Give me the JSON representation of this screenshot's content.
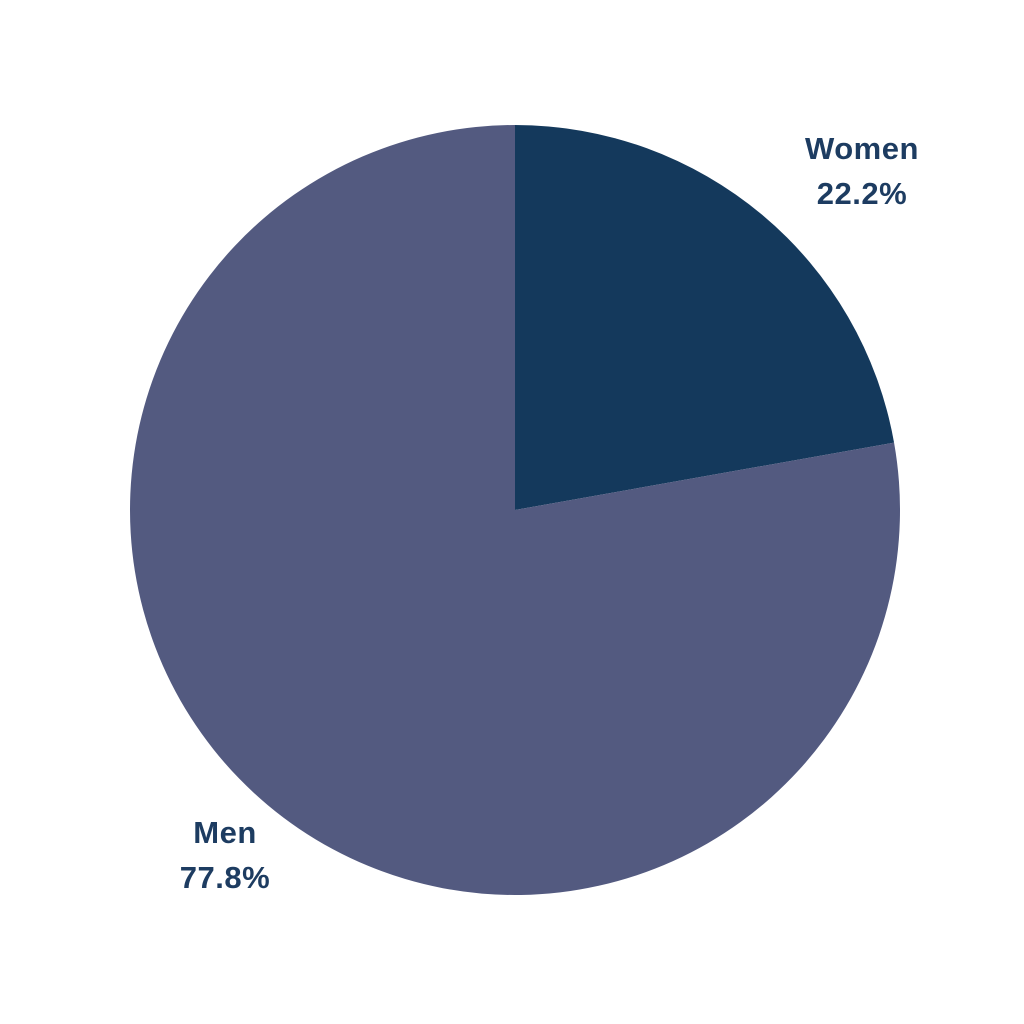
{
  "chart_data": {
    "type": "pie",
    "title": "",
    "slices": [
      {
        "label": "Women",
        "value": 22.2,
        "value_text": "22.2%",
        "color": "#14395C"
      },
      {
        "label": "Men",
        "value": 77.8,
        "value_text": "77.8%",
        "color": "#535A80"
      }
    ],
    "start_angle_deg": 0,
    "direction": "clockwise",
    "label_text_color": "#1D3C61",
    "background_color": "#FFFFFF",
    "legend": "none",
    "grid": false
  }
}
